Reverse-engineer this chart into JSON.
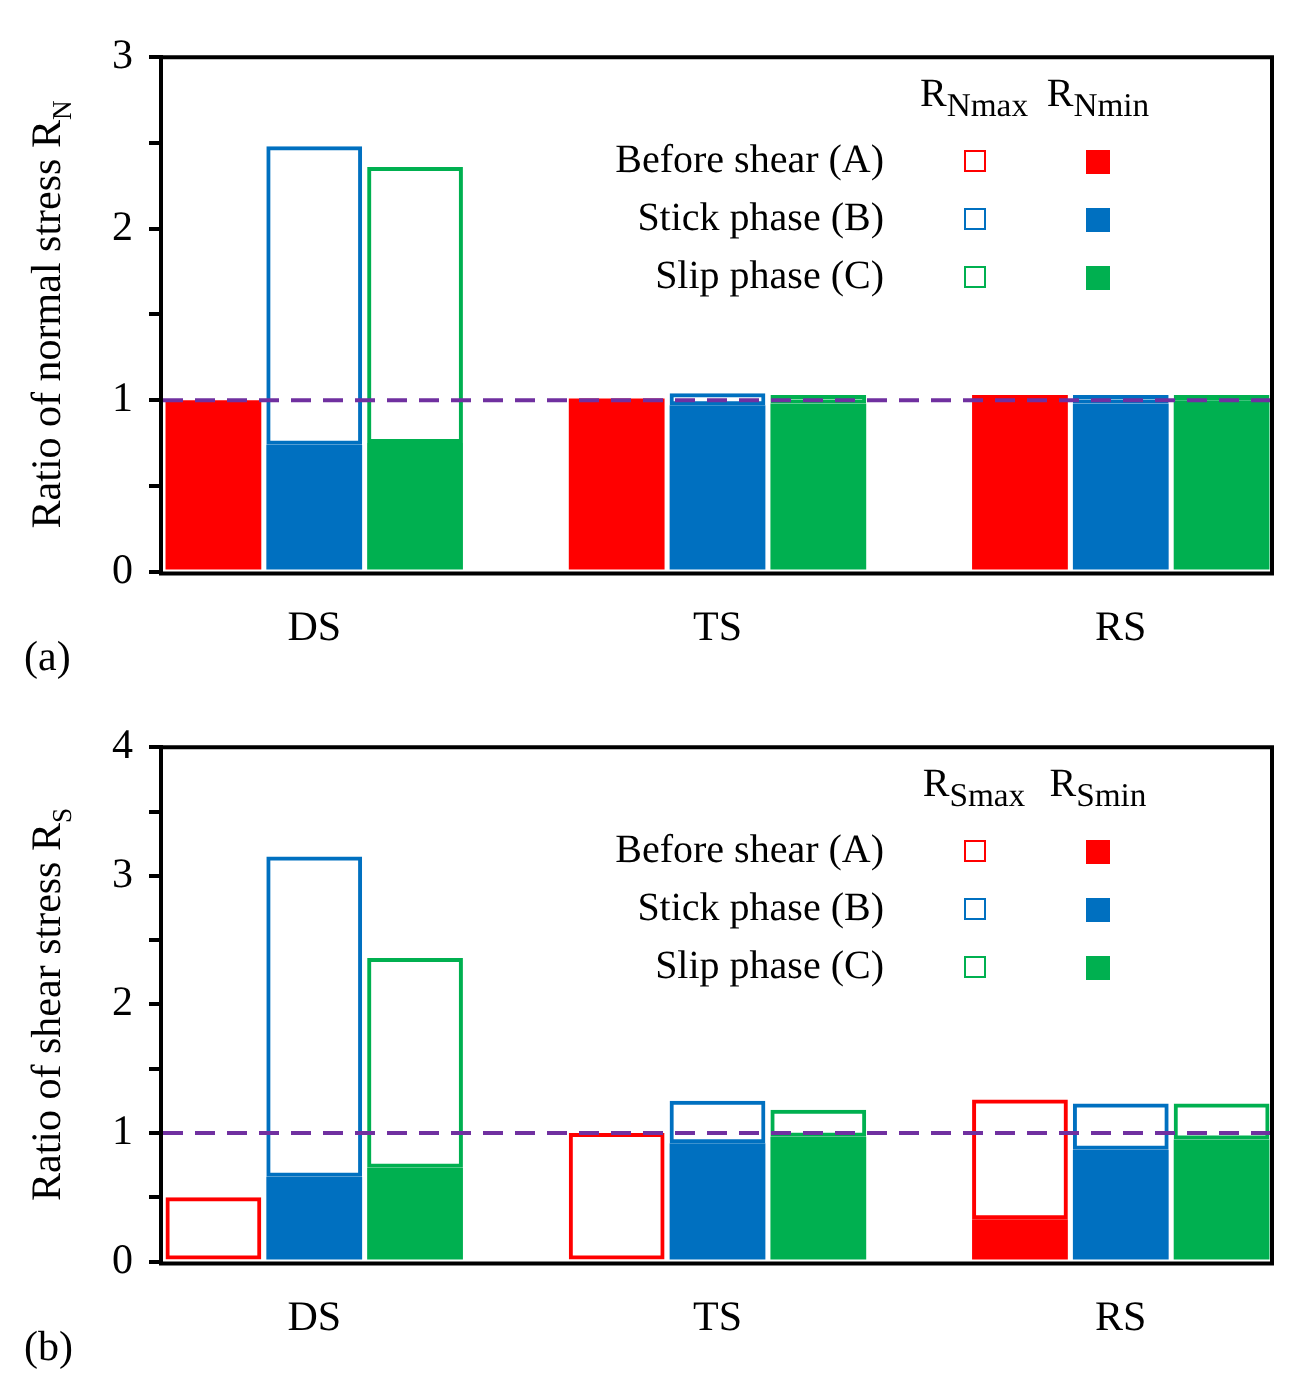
{
  "chart_data": [
    {
      "type": "bar",
      "stacked": true,
      "ylabel": "Ratio of normal stress R$_{N}$",
      "categories": [
        null,
        "DS",
        null,
        null,
        null,
        "TS",
        null,
        null,
        null,
        "RS",
        null
      ],
      "ylim": [
        0,
        3
      ],
      "yticks": [
        0,
        {
          "value": 0.5,
          "label": null
        },
        1,
        {
          "value": 1.5,
          "label": null
        },
        2,
        {
          "value": 2.5,
          "label": null
        },
        3
      ],
      "grid": false,
      "legend": "top right",
      "annotations": [
        "(a)",
        "R$_{Nmax}$",
        "R$_{Nmin}$"
      ],
      "ref_lines": [
        {
          "axis": "y",
          "value": 1,
          "color": "#7030a0",
          "line_style": "dashed"
        }
      ],
      "series": [
        {
          "name": "Before shear (A)",
          "color": "#ff0000",
          "values": [
            1.0,
            null,
            null,
            null,
            1.01,
            null,
            null,
            null,
            1.03,
            null,
            null
          ]
        },
        {
          "name": "Stick phase (B)",
          "color": "#0070c0",
          "values": [
            null,
            0.74,
            null,
            null,
            null,
            0.97,
            null,
            null,
            null,
            0.98,
            null
          ]
        },
        {
          "color": "#0070c0",
          "values": [
            null,
            1.74,
            null,
            null,
            null,
            0.07,
            null,
            null,
            null,
            0.05,
            null
          ]
        },
        {
          "name": "Slip phase (C)",
          "color": "#00b050",
          "values": [
            null,
            null,
            0.75,
            null,
            null,
            null,
            0.98,
            null,
            null,
            null,
            1.0
          ]
        },
        {
          "color": "#00b050",
          "values": [
            null,
            null,
            1.61,
            null,
            null,
            null,
            0.05,
            null,
            null,
            null,
            0.03
          ]
        }
      ]
    },
    {
      "type": "bar",
      "stacked": true,
      "ylabel": "Ratio of shear stress R$_{S}$",
      "categories": [
        null,
        "DS",
        null,
        null,
        null,
        "TS",
        null,
        null,
        null,
        "RS",
        null
      ],
      "ylim": [
        0,
        4
      ],
      "yticks": [
        0,
        {
          "value": 0.5,
          "label": null
        },
        1,
        {
          "value": 1.5,
          "label": null
        },
        2,
        {
          "value": 2.5,
          "label": null
        },
        3,
        {
          "value": 3.5,
          "label": null
        },
        4
      ],
      "grid": false,
      "legend": "top right",
      "annotations": [
        "(b)",
        "R$_{Smax}$",
        "R$_{Smin}$"
      ],
      "ref_lines": [
        {
          "axis": "y",
          "value": 1,
          "color": "#7030a0",
          "line_style": "dashed"
        }
      ],
      "series": [
        {
          "name": "Before shear (A)",
          "color": "#ff0000",
          "values": [
            0,
            null,
            null,
            null,
            0,
            null,
            null,
            null,
            0.33,
            null,
            null
          ]
        },
        {
          "color": "#ff0000",
          "values": [
            0.5,
            null,
            null,
            null,
            1.0,
            null,
            null,
            null,
            0.93,
            null,
            null
          ]
        },
        {
          "name": "Stick phase (B)",
          "color": "#0070c0",
          "values": [
            null,
            0.66,
            null,
            null,
            null,
            0.92,
            null,
            null,
            null,
            0.87,
            null
          ]
        },
        {
          "color": "#0070c0",
          "values": [
            null,
            2.49,
            null,
            null,
            null,
            0.33,
            null,
            null,
            null,
            0.36,
            null
          ]
        },
        {
          "name": "Slip phase (C)",
          "color": "#00b050",
          "values": [
            null,
            null,
            0.73,
            null,
            null,
            null,
            0.97,
            null,
            null,
            null,
            0.95
          ]
        },
        {
          "color": "#00b050",
          "values": [
            null,
            null,
            1.63,
            null,
            null,
            null,
            0.21,
            null,
            null,
            null,
            0.28
          ]
        }
      ]
    }
  ]
}
